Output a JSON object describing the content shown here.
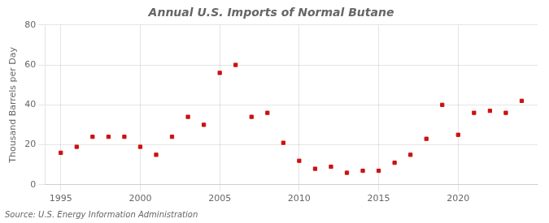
{
  "chart_data": {
    "type": "scatter",
    "title": "Annual U.S. Imports of Normal Butane",
    "ylabel": "Thousand Barrels per Day",
    "source": "Source: U.S. Energy Information Administration",
    "x": [
      1995,
      1996,
      1997,
      1998,
      1999,
      2000,
      2001,
      2002,
      2003,
      2004,
      2005,
      2006,
      2007,
      2008,
      2009,
      2010,
      2011,
      2012,
      2013,
      2014,
      2015,
      2016,
      2017,
      2018,
      2019,
      2020,
      2021,
      2022,
      2023,
      2024
    ],
    "values": [
      16,
      19,
      24,
      24,
      24,
      19,
      15,
      24,
      34,
      30,
      56,
      60,
      34,
      36,
      21,
      12,
      8,
      9,
      6,
      7,
      7,
      11,
      15,
      23,
      40,
      25,
      36,
      37,
      36,
      42
    ],
    "xlim": [
      1994.0,
      2025.0
    ],
    "xticks": [
      1995,
      2000,
      2005,
      2010,
      2015,
      2020
    ],
    "ylim": [
      0,
      80
    ],
    "yticks": [
      0,
      20,
      40,
      60,
      80
    ],
    "color": "#cc1111",
    "marker": "square",
    "grid": true
  }
}
